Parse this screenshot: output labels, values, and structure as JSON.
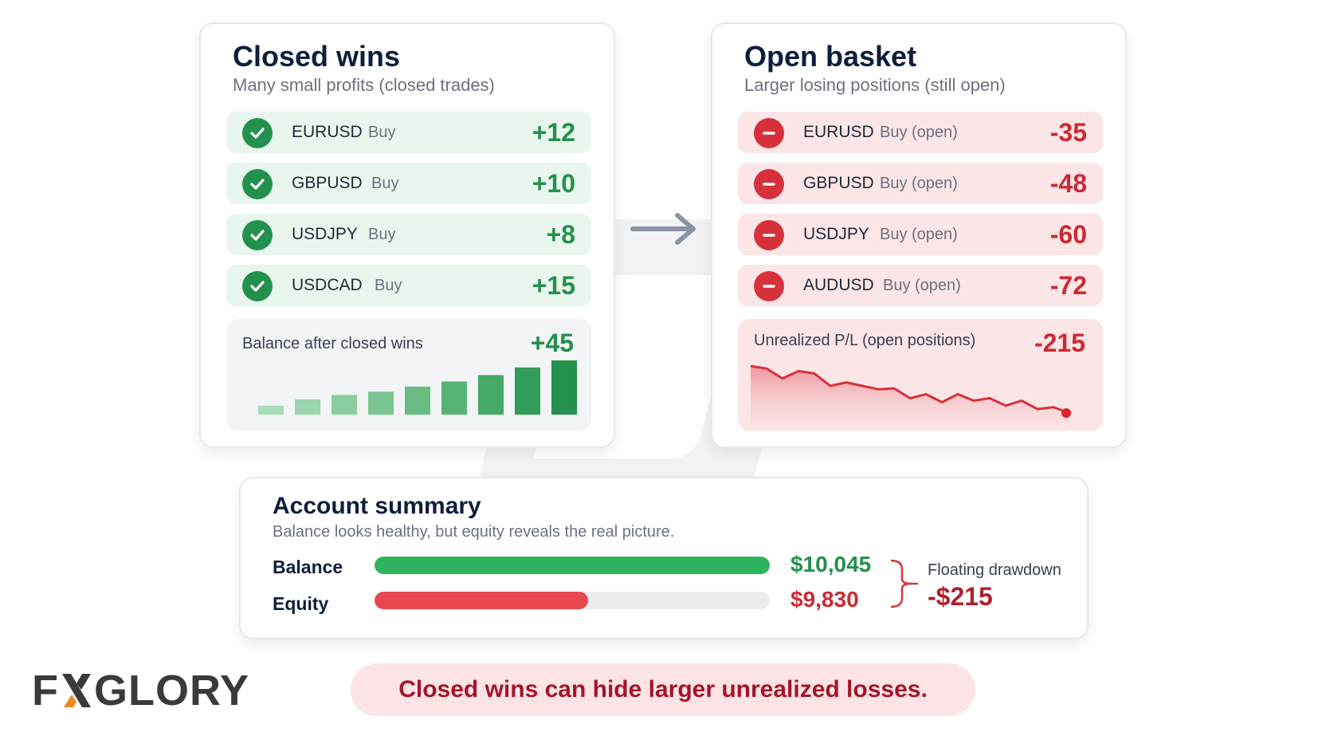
{
  "closed_panel": {
    "title": "Closed wins",
    "subtitle": "Many small profits (closed trades)",
    "trades": [
      {
        "symbol": "EURUSD",
        "side": "Buy",
        "pl": "+12"
      },
      {
        "symbol": "GBPUSD",
        "side": "Buy",
        "pl": "+10"
      },
      {
        "symbol": "USDJPY",
        "side": "Buy",
        "pl": "+8"
      },
      {
        "symbol": "USDCAD",
        "side": "Buy",
        "pl": "+15"
      }
    ],
    "balance_label": "Balance after closed wins",
    "balance_value": "+45",
    "bar_values": [
      0.14,
      0.24,
      0.31,
      0.36,
      0.44,
      0.52,
      0.62,
      0.74,
      0.85
    ],
    "bar_colors": [
      "#a8dcb9",
      "#99d5ad",
      "#8ace9f",
      "#79c692",
      "#69bd83",
      "#58b475",
      "#46a967",
      "#339c58",
      "#23914d"
    ]
  },
  "open_panel": {
    "title": "Open basket",
    "subtitle": "Larger losing positions (still open)",
    "trades": [
      {
        "symbol": "EURUSD",
        "side": "Buy (open)",
        "pl": "-35"
      },
      {
        "symbol": "GBPUSD",
        "side": "Buy (open)",
        "pl": "-48"
      },
      {
        "symbol": "USDJPY",
        "side": "Buy (open)",
        "pl": "-60"
      },
      {
        "symbol": "AUDUSD",
        "side": "Buy (open)",
        "pl": "-72"
      }
    ],
    "unrealized_label": "Unrealized P/L (open positions)",
    "unrealized_value": "-215",
    "line_values": [
      0.95,
      0.9,
      0.7,
      0.85,
      0.8,
      0.55,
      0.62,
      0.55,
      0.48,
      0.5,
      0.3,
      0.38,
      0.22,
      0.38,
      0.25,
      0.3,
      0.15,
      0.25,
      0.08,
      0.12,
      0.0
    ]
  },
  "summary": {
    "title": "Account summary",
    "subtitle": "Balance looks healthy, but equity reveals the real picture.",
    "balance_label": "Balance",
    "balance_value": "$10,045",
    "balance_fraction": 1.0,
    "equity_label": "Equity",
    "equity_value": "$9,830",
    "equity_fraction": 0.54,
    "drawdown_label": "Floating drawdown",
    "drawdown_value": "-$215"
  },
  "colors": {
    "green": "#23914d",
    "red": "#d6313b",
    "navy": "#0f1e3d"
  },
  "logo": {
    "left": "F",
    "right": "GLORY"
  },
  "callout": "Closed wins can hide larger unrealized losses."
}
